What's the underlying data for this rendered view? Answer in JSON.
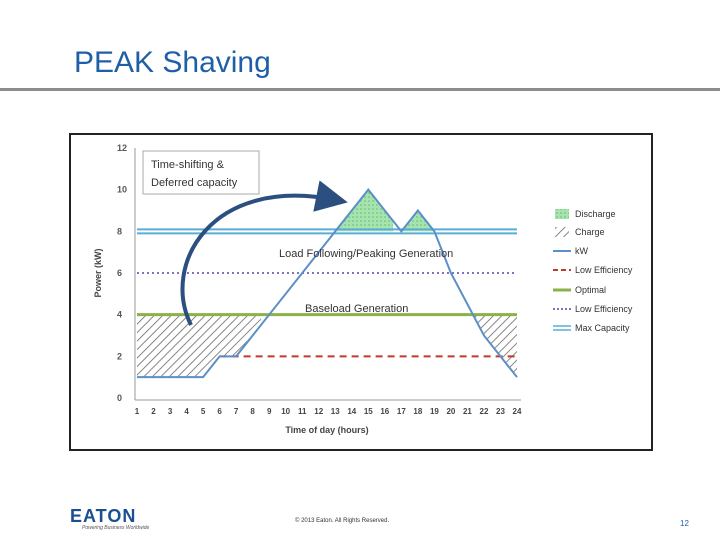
{
  "slide": {
    "title": "PEAK Shaving",
    "copyright": "© 2013 Eaton. All Rights Reserved.",
    "page_number": "12",
    "logo_text": "EATON",
    "logo_tagline": "Powering Business Worldwide"
  },
  "colors": {
    "title": "#1f5fa8",
    "kw": "#5b8fc7",
    "low_eff_red": "#c0392b",
    "optimal": "#8db14a",
    "low_eff_purple": "#8a6fbf",
    "max_capacity": "#5aaed6",
    "discharge": "#8fd89a"
  },
  "chart_data": {
    "type": "line",
    "xlabel": "Time of day (hours)",
    "ylabel": "Power (kW)",
    "x": [
      1,
      2,
      3,
      4,
      5,
      6,
      7,
      8,
      9,
      10,
      11,
      12,
      13,
      14,
      15,
      16,
      17,
      18,
      19,
      20,
      21,
      22,
      23,
      24
    ],
    "xlim": [
      1,
      24
    ],
    "ylim": [
      0,
      12
    ],
    "yticks": [
      0,
      2,
      4,
      6,
      8,
      10,
      12
    ],
    "grid": false,
    "legend_position": "right",
    "series": [
      {
        "name": "kW",
        "kind": "line",
        "points": [
          [
            1,
            1
          ],
          [
            5,
            1
          ],
          [
            6,
            2
          ],
          [
            7,
            2
          ],
          [
            15,
            10
          ],
          [
            17,
            8
          ],
          [
            18,
            9
          ],
          [
            19,
            8
          ],
          [
            20,
            6
          ],
          [
            22,
            3
          ],
          [
            24,
            1
          ]
        ]
      },
      {
        "name": "Low Efficiency",
        "kind": "dashed",
        "value": 2,
        "from": 6,
        "to": 24
      },
      {
        "name": "Optimal",
        "kind": "hline",
        "value": 4
      },
      {
        "name": "Low Efficiency",
        "kind": "dotted",
        "value": 6
      },
      {
        "name": "Max Capacity",
        "kind": "double",
        "value": 8
      }
    ],
    "areas": [
      {
        "name": "Discharge",
        "pattern": "green"
      },
      {
        "name": "Charge",
        "pattern": "hatch"
      }
    ],
    "legend": [
      "Discharge",
      "Charge",
      "kW",
      "Low Efficiency",
      "Optimal",
      "Low Efficiency",
      "Max Capacity"
    ],
    "annotations": {
      "box": [
        "Time-shifting &",
        "Deferred capacity"
      ],
      "peaking": "Load Following/Peaking Generation",
      "baseload": "Baseload Generation"
    }
  }
}
